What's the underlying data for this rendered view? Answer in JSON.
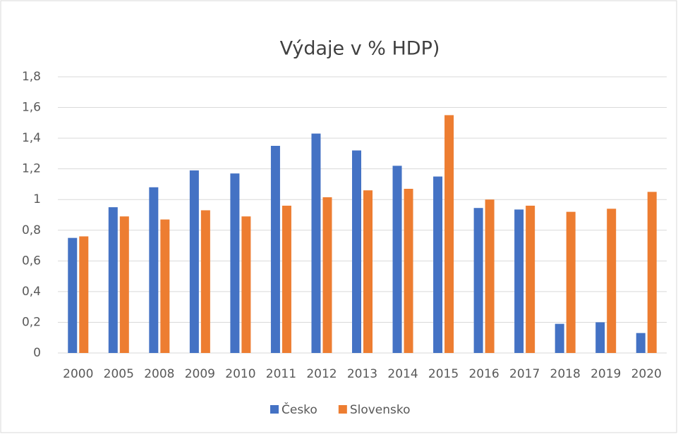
{
  "chart_data": {
    "type": "bar",
    "title": "Výdaje v % HDP)",
    "categories": [
      "2000",
      "2005",
      "2008",
      "2009",
      "2010",
      "2011",
      "2012",
      "2013",
      "2014",
      "2015",
      "2016",
      "2017",
      "2018",
      "2019",
      "2020"
    ],
    "series": [
      {
        "name": "Česko",
        "color": "#4472c4",
        "values": [
          0.75,
          0.95,
          1.08,
          1.19,
          1.17,
          1.35,
          1.43,
          1.32,
          1.22,
          1.15,
          0.945,
          0.935,
          0.19,
          0.2,
          0.13
        ]
      },
      {
        "name": "Slovensko",
        "color": "#ed7d31",
        "values": [
          0.76,
          0.89,
          0.87,
          0.93,
          0.89,
          0.96,
          1.015,
          1.06,
          1.07,
          1.55,
          1.0,
          0.96,
          0.92,
          0.94,
          1.05
        ]
      }
    ],
    "ylim": [
      0,
      1.8
    ],
    "yticks": [
      0,
      {
        "value": 0.2,
        "label": "0,2"
      },
      {
        "value": 0.4,
        "label": "0,4"
      },
      {
        "value": 0.6,
        "label": "0,6"
      },
      {
        "value": 0.8,
        "label": "0,8"
      },
      1,
      {
        "value": 1.2,
        "label": "1,2"
      },
      {
        "value": 1.4,
        "label": "1,4"
      },
      {
        "value": 1.6,
        "label": "1,6"
      },
      {
        "value": 1.8,
        "label": "1,8"
      }
    ],
    "grid": true,
    "legend": "bottom"
  }
}
